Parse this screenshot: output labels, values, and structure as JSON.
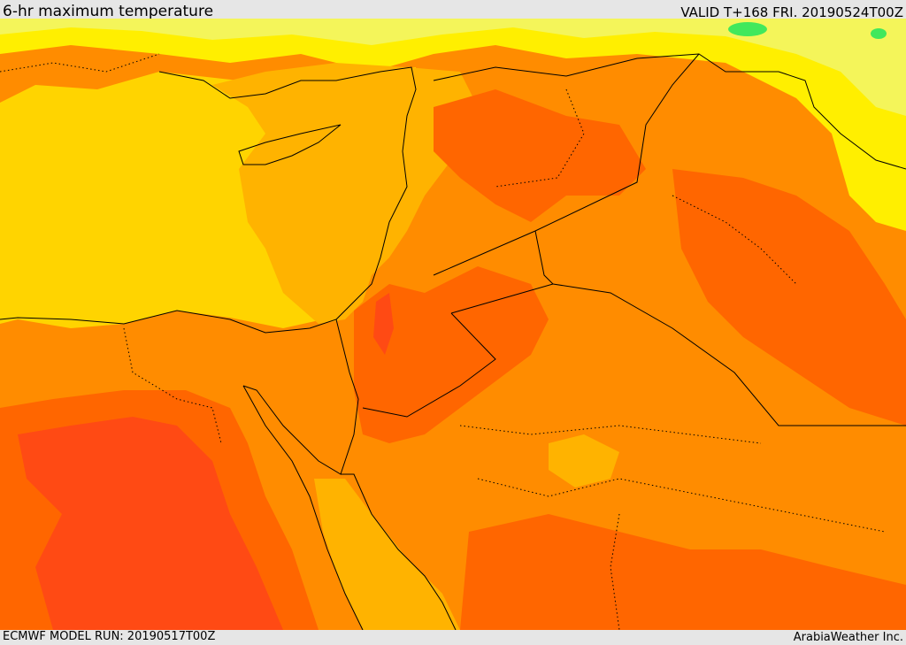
{
  "header": {
    "title": "6-hr maximum temperature",
    "valid": "VALID T+168 FRI. 20190524T00Z"
  },
  "footer": {
    "model_run": "ECMWF MODEL RUN: 20190517T00Z",
    "credit": "ArabiaWeather Inc."
  },
  "map": {
    "field": "temperature",
    "palette": {
      "cool_green": "#41e85c",
      "pale_yellow": "#f4f55a",
      "yellow": "#ffef00",
      "gold": "#ffd400",
      "amber": "#ffb300",
      "orange": "#ff8c00",
      "dark_orange": "#ff6600",
      "red_orange": "#ff4a14"
    }
  }
}
